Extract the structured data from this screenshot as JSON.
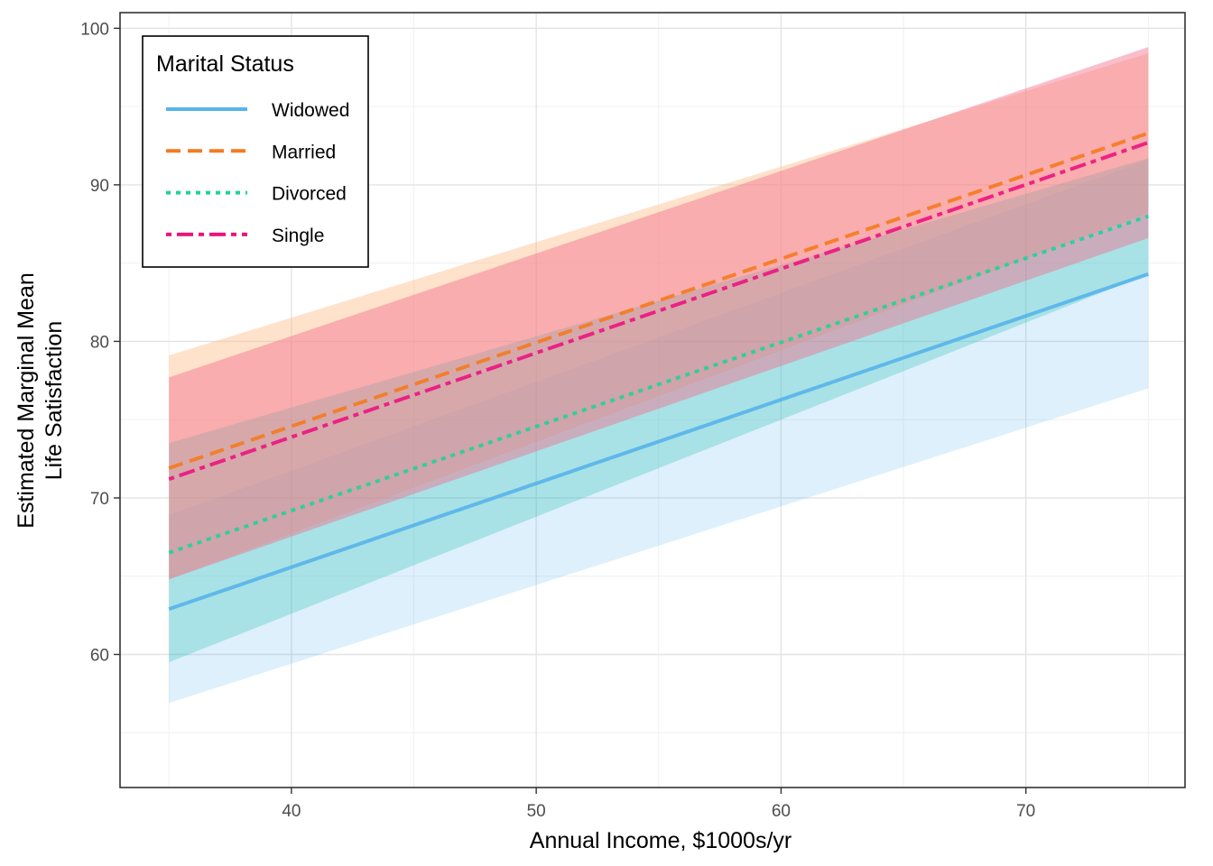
{
  "chart_data": {
    "type": "line",
    "title": "",
    "xlabel": "Annual Income, $1000s/yr",
    "ylabel_lines": [
      "Estimated Marginal Mean",
      "Life Satisfaction"
    ],
    "xlim": [
      33,
      76.5
    ],
    "ylim": [
      51.5,
      101
    ],
    "x_ticks": [
      40,
      50,
      60,
      70
    ],
    "y_ticks": [
      60,
      70,
      80,
      90,
      100
    ],
    "x_minor_ticks": [
      35,
      45,
      55,
      65,
      75
    ],
    "y_minor_ticks": [
      55,
      65,
      75,
      85,
      95
    ],
    "grid": true,
    "legend": {
      "title": "Marital Status",
      "placement": "top-left"
    },
    "series": [
      {
        "name": "Widowed",
        "color": "#56b4e9",
        "fill": "#56b4e9",
        "linestyle": "solid",
        "x": [
          35,
          75
        ],
        "y": [
          62.9,
          84.3
        ],
        "lower": [
          56.9,
          77.0
        ],
        "upper": [
          68.9,
          91.6
        ]
      },
      {
        "name": "Married",
        "color": "#f47a1f",
        "fill": "#fdbb84",
        "linestyle": "dashed",
        "x": [
          35,
          75
        ],
        "y": [
          71.9,
          93.3
        ],
        "lower": [
          64.8,
          88.2
        ],
        "upper": [
          79.1,
          98.4
        ]
      },
      {
        "name": "Divorced",
        "color": "#1ed39a",
        "fill": "#2ec4b6",
        "linestyle": "dotted",
        "x": [
          35,
          75
        ],
        "y": [
          66.5,
          88.0
        ],
        "lower": [
          59.5,
          84.3
        ],
        "upper": [
          73.5,
          91.7
        ]
      },
      {
        "name": "Single",
        "color": "#ec1380",
        "fill": "#f46d8c",
        "linestyle": "dashdot",
        "x": [
          35,
          75
        ],
        "y": [
          71.2,
          92.7
        ],
        "lower": [
          64.8,
          86.6
        ],
        "upper": [
          77.7,
          98.8
        ]
      }
    ]
  }
}
